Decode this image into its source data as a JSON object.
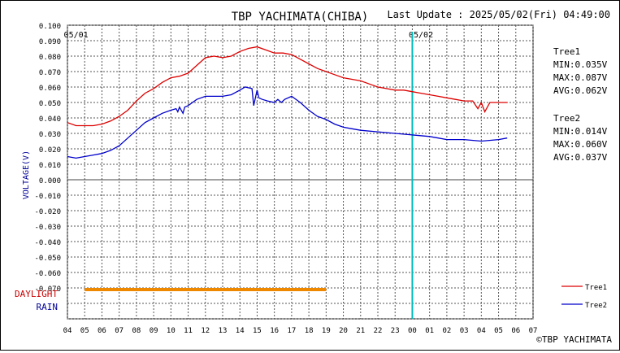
{
  "header": {
    "title": "TBP YACHIMATA(CHIBA)",
    "last_update": "Last Update : 2025/05/02(Fri) 04:49:00"
  },
  "copyright": "©TBP YACHIMATA",
  "colors": {
    "tree1": "#dd0000",
    "tree2": "#0000cc",
    "daylight_bar": "#ee8800",
    "midnight_line": "#00bbbb",
    "daylight_label": "#cc0000",
    "rain_label": "#000099",
    "voltage_label": "#000099"
  },
  "chart_data": {
    "type": "line",
    "ylabel": "VOLTAGE(V)",
    "ylim": [
      -0.09,
      0.1
    ],
    "yticks": [
      "0.100",
      "0.090",
      "0.080",
      "0.070",
      "0.060",
      "0.050",
      "0.040",
      "0.030",
      "0.020",
      "0.010",
      "0.000",
      "-0.010",
      "-0.020",
      "-0.030",
      "-0.040",
      "-0.050",
      "-0.060",
      "-0.070"
    ],
    "yticks_values": [
      0.1,
      0.09,
      0.08,
      0.07,
      0.06,
      0.05,
      0.04,
      0.03,
      0.02,
      0.01,
      0.0,
      -0.01,
      -0.02,
      -0.03,
      -0.04,
      -0.05,
      -0.06,
      -0.07
    ],
    "xlim_hours": [
      4,
      31
    ],
    "xticks": [
      "04",
      "05",
      "06",
      "07",
      "08",
      "09",
      "10",
      "11",
      "12",
      "13",
      "14",
      "15",
      "16",
      "17",
      "18",
      "19",
      "20",
      "21",
      "22",
      "23",
      "00",
      "01",
      "02",
      "03",
      "04",
      "05",
      "06",
      "07"
    ],
    "date_labels": [
      {
        "label": "05/01",
        "hour": 4.5
      },
      {
        "label": "05/02",
        "hour": 24.5
      }
    ],
    "midnight_hour": 24,
    "rows": {
      "daylight": "DAYLIGHT",
      "rain": "RAIN"
    },
    "daylight": [
      5,
      19
    ],
    "series": [
      {
        "name": "Tree1",
        "stats": {
          "min": "MIN:0.035V",
          "max": "MAX:0.087V",
          "avg": "AVG:0.062V"
        },
        "points": [
          [
            4,
            0.037
          ],
          [
            4.5,
            0.035
          ],
          [
            5,
            0.035
          ],
          [
            5.5,
            0.035
          ],
          [
            6,
            0.036
          ],
          [
            6.5,
            0.038
          ],
          [
            7,
            0.041
          ],
          [
            7.5,
            0.045
          ],
          [
            8,
            0.051
          ],
          [
            8.5,
            0.056
          ],
          [
            9,
            0.059
          ],
          [
            9.5,
            0.063
          ],
          [
            10,
            0.066
          ],
          [
            10.5,
            0.067
          ],
          [
            11,
            0.069
          ],
          [
            11.5,
            0.074
          ],
          [
            12,
            0.079
          ],
          [
            12.5,
            0.08
          ],
          [
            13,
            0.079
          ],
          [
            13.5,
            0.08
          ],
          [
            14,
            0.083
          ],
          [
            14.5,
            0.085
          ],
          [
            15,
            0.086
          ],
          [
            15.5,
            0.084
          ],
          [
            16,
            0.082
          ],
          [
            16.5,
            0.082
          ],
          [
            17,
            0.081
          ],
          [
            17.5,
            0.078
          ],
          [
            18,
            0.075
          ],
          [
            18.5,
            0.072
          ],
          [
            19,
            0.07
          ],
          [
            19.5,
            0.068
          ],
          [
            20,
            0.066
          ],
          [
            20.5,
            0.065
          ],
          [
            21,
            0.064
          ],
          [
            21.5,
            0.062
          ],
          [
            22,
            0.06
          ],
          [
            22.5,
            0.059
          ],
          [
            23,
            0.058
          ],
          [
            23.5,
            0.058
          ],
          [
            24,
            0.057
          ],
          [
            24.5,
            0.056
          ],
          [
            25,
            0.055
          ],
          [
            25.5,
            0.054
          ],
          [
            26,
            0.053
          ],
          [
            26.5,
            0.052
          ],
          [
            27,
            0.051
          ],
          [
            27.5,
            0.051
          ],
          [
            27.8,
            0.046
          ],
          [
            28,
            0.05
          ],
          [
            28.2,
            0.044
          ],
          [
            28.5,
            0.05
          ],
          [
            29,
            0.05
          ],
          [
            29.5,
            0.05
          ]
        ]
      },
      {
        "name": "Tree2",
        "stats": {
          "min": "MIN:0.014V",
          "max": "MAX:0.060V",
          "avg": "AVG:0.037V"
        },
        "points": [
          [
            4,
            0.015
          ],
          [
            4.5,
            0.014
          ],
          [
            5,
            0.015
          ],
          [
            5.5,
            0.016
          ],
          [
            6,
            0.017
          ],
          [
            6.5,
            0.019
          ],
          [
            7,
            0.022
          ],
          [
            7.5,
            0.027
          ],
          [
            8,
            0.032
          ],
          [
            8.5,
            0.037
          ],
          [
            9,
            0.04
          ],
          [
            9.5,
            0.043
          ],
          [
            10,
            0.045
          ],
          [
            10.3,
            0.046
          ],
          [
            10.4,
            0.044
          ],
          [
            10.5,
            0.047
          ],
          [
            10.7,
            0.043
          ],
          [
            10.8,
            0.047
          ],
          [
            11,
            0.048
          ],
          [
            11.5,
            0.052
          ],
          [
            12,
            0.054
          ],
          [
            12.5,
            0.054
          ],
          [
            13,
            0.054
          ],
          [
            13.5,
            0.055
          ],
          [
            14,
            0.058
          ],
          [
            14.3,
            0.06
          ],
          [
            14.7,
            0.059
          ],
          [
            14.8,
            0.048
          ],
          [
            15,
            0.058
          ],
          [
            15.1,
            0.053
          ],
          [
            15.3,
            0.052
          ],
          [
            15.6,
            0.051
          ],
          [
            16,
            0.05
          ],
          [
            16.2,
            0.052
          ],
          [
            16.4,
            0.05
          ],
          [
            16.6,
            0.052
          ],
          [
            17,
            0.054
          ],
          [
            17.5,
            0.05
          ],
          [
            18,
            0.045
          ],
          [
            18.5,
            0.041
          ],
          [
            19,
            0.039
          ],
          [
            19.5,
            0.036
          ],
          [
            20,
            0.034
          ],
          [
            20.5,
            0.033
          ],
          [
            21,
            0.032
          ],
          [
            22,
            0.031
          ],
          [
            23,
            0.03
          ],
          [
            24,
            0.029
          ],
          [
            25,
            0.028
          ],
          [
            25.5,
            0.027
          ],
          [
            26,
            0.026
          ],
          [
            27,
            0.026
          ],
          [
            28,
            0.025
          ],
          [
            29,
            0.026
          ],
          [
            29.5,
            0.027
          ]
        ]
      }
    ],
    "grid": true,
    "legend": "bottom-right"
  }
}
